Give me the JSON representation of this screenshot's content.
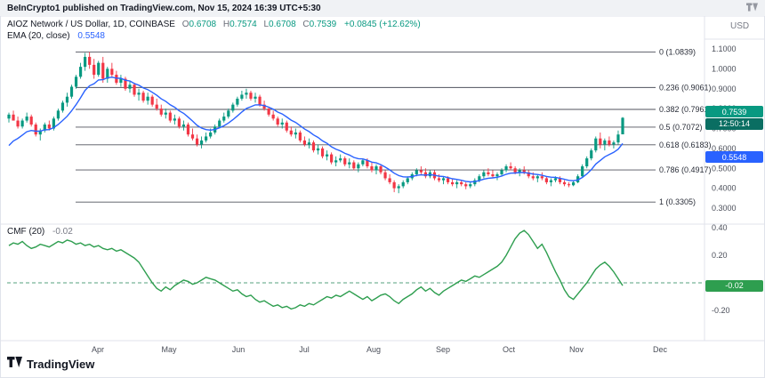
{
  "attribution": {
    "text": "BeInCrypto1 published on TradingView.com, Nov 15, 2024 16:39 UTC+5:30"
  },
  "header": {
    "symbol_title": "AIOZ Network / US Dollar, 1D, COINBASE",
    "o_label": "O",
    "o": "0.6708",
    "h_label": "H",
    "h": "0.7574",
    "l_label": "L",
    "l": "0.6708",
    "c_label": "C",
    "c": "0.7539",
    "change": "+0.0845 (+12.62%)",
    "ema_label": "EMA (20, close)",
    "ema_value": "0.5548",
    "currency": "USD"
  },
  "cmf_legend": {
    "title": "CMF (20)",
    "value": "-0.02"
  },
  "badges": {
    "last_price": {
      "value": "0.7539",
      "countdown": "12:50:14"
    },
    "ema": {
      "value": "0.5548"
    },
    "cmf": {
      "value": "-0.02"
    }
  },
  "footer": {
    "logo_text": "TradingView"
  },
  "colors": {
    "up": "#089981",
    "down": "#F23645",
    "ema": "#2962FF",
    "cmf_line": "#2E9E4F",
    "countdown_bg": "#0a6e62",
    "fib_line": "#50535e",
    "axis_text": "#4a4e59",
    "divider": "#e0e3eb",
    "zero_dash": "#55a07e"
  },
  "chart_data": [
    {
      "type": "candlestick",
      "title": "AIOZ Network / US Dollar, 1D, COINBASE",
      "ohlc_last": {
        "open": 0.6708,
        "high": 0.7574,
        "low": 0.6708,
        "close": 0.7539,
        "change": "+0.0845 (+12.62%)"
      },
      "ylim": [
        0.25,
        1.13
      ],
      "yticks": [
        1.1,
        1.0,
        0.9,
        0.8,
        0.7,
        0.6,
        0.5,
        0.4,
        0.3
      ],
      "ytick_labels": [
        "1.1000",
        "1.0000",
        "0.9000",
        "0.8000",
        "0.7000",
        "0.6000",
        "0.5000",
        "0.4000",
        "0.3000"
      ],
      "fib_levels": [
        {
          "label": "0 (1.0839)",
          "value": 1.0839
        },
        {
          "label": "0.236 (0.9061)",
          "value": 0.9061
        },
        {
          "label": "0.382 (0.7961)",
          "value": 0.7961
        },
        {
          "label": "0.5 (0.7072)",
          "value": 0.7072
        },
        {
          "label": "0.618 (0.6183)",
          "value": 0.6183
        },
        {
          "label": "0.786 (0.4917)",
          "value": 0.4917
        },
        {
          "label": "1 (0.3305)",
          "value": 0.3305
        }
      ],
      "x_axis": {
        "labels": [
          "Apr",
          "May",
          "Jun",
          "Jul",
          "Aug",
          "Sep",
          "Oct",
          "Nov",
          "Dec"
        ],
        "positions": [
          110,
          190,
          268,
          342,
          420,
          498,
          572,
          648,
          742
        ]
      },
      "ema_period": 20,
      "ema_seed": 0.58,
      "ema_last": 0.5548,
      "candles": [
        [
          0.75,
          0.78,
          0.73,
          0.77
        ],
        [
          0.77,
          0.79,
          0.74,
          0.74
        ],
        [
          0.74,
          0.76,
          0.7,
          0.71
        ],
        [
          0.71,
          0.75,
          0.7,
          0.74
        ],
        [
          0.74,
          0.78,
          0.73,
          0.76
        ],
        [
          0.76,
          0.77,
          0.71,
          0.72
        ],
        [
          0.72,
          0.73,
          0.66,
          0.67
        ],
        [
          0.67,
          0.7,
          0.64,
          0.69
        ],
        [
          0.69,
          0.73,
          0.68,
          0.72
        ],
        [
          0.72,
          0.74,
          0.69,
          0.7
        ],
        [
          0.7,
          0.76,
          0.69,
          0.75
        ],
        [
          0.75,
          0.8,
          0.74,
          0.79
        ],
        [
          0.79,
          0.84,
          0.78,
          0.83
        ],
        [
          0.83,
          0.88,
          0.81,
          0.86
        ],
        [
          0.86,
          0.92,
          0.85,
          0.91
        ],
        [
          0.91,
          0.97,
          0.9,
          0.96
        ],
        [
          0.96,
          1.03,
          0.95,
          1.01
        ],
        [
          1.01,
          1.08,
          0.99,
          1.06
        ],
        [
          1.06,
          1.084,
          1.0,
          1.02
        ],
        [
          1.02,
          1.05,
          0.95,
          0.97
        ],
        [
          0.97,
          1.04,
          0.96,
          1.03
        ],
        [
          1.03,
          1.06,
          0.93,
          0.95
        ],
        [
          0.95,
          1.01,
          0.93,
          1.0
        ],
        [
          1.0,
          1.03,
          0.96,
          0.97
        ],
        [
          0.97,
          0.99,
          0.92,
          0.93
        ],
        [
          0.93,
          0.97,
          0.91,
          0.95
        ],
        [
          0.95,
          0.96,
          0.89,
          0.9
        ],
        [
          0.9,
          0.94,
          0.88,
          0.92
        ],
        [
          0.92,
          0.93,
          0.86,
          0.87
        ],
        [
          0.87,
          0.9,
          0.84,
          0.88
        ],
        [
          0.88,
          0.89,
          0.83,
          0.84
        ],
        [
          0.84,
          0.88,
          0.82,
          0.86
        ],
        [
          0.86,
          0.87,
          0.81,
          0.82
        ],
        [
          0.82,
          0.85,
          0.79,
          0.8
        ],
        [
          0.8,
          0.82,
          0.76,
          0.77
        ],
        [
          0.77,
          0.8,
          0.75,
          0.78
        ],
        [
          0.78,
          0.79,
          0.73,
          0.74
        ],
        [
          0.74,
          0.77,
          0.72,
          0.75
        ],
        [
          0.75,
          0.76,
          0.7,
          0.71
        ],
        [
          0.71,
          0.74,
          0.69,
          0.72
        ],
        [
          0.72,
          0.73,
          0.66,
          0.67
        ],
        [
          0.67,
          0.7,
          0.64,
          0.65
        ],
        [
          0.65,
          0.67,
          0.61,
          0.62
        ],
        [
          0.62,
          0.66,
          0.6,
          0.64
        ],
        [
          0.64,
          0.68,
          0.63,
          0.66
        ],
        [
          0.66,
          0.7,
          0.65,
          0.68
        ],
        [
          0.68,
          0.72,
          0.67,
          0.71
        ],
        [
          0.71,
          0.75,
          0.7,
          0.74
        ],
        [
          0.74,
          0.78,
          0.73,
          0.76
        ],
        [
          0.76,
          0.8,
          0.75,
          0.79
        ],
        [
          0.79,
          0.83,
          0.78,
          0.82
        ],
        [
          0.82,
          0.86,
          0.81,
          0.85
        ],
        [
          0.85,
          0.89,
          0.84,
          0.87
        ],
        [
          0.87,
          0.9,
          0.85,
          0.88
        ],
        [
          0.88,
          0.89,
          0.84,
          0.85
        ],
        [
          0.85,
          0.88,
          0.83,
          0.86
        ],
        [
          0.86,
          0.87,
          0.81,
          0.82
        ],
        [
          0.82,
          0.84,
          0.79,
          0.8
        ],
        [
          0.8,
          0.81,
          0.76,
          0.77
        ],
        [
          0.77,
          0.79,
          0.74,
          0.75
        ],
        [
          0.75,
          0.76,
          0.71,
          0.72
        ],
        [
          0.72,
          0.75,
          0.7,
          0.73
        ],
        [
          0.73,
          0.74,
          0.68,
          0.69
        ],
        [
          0.69,
          0.71,
          0.66,
          0.67
        ],
        [
          0.67,
          0.7,
          0.65,
          0.68
        ],
        [
          0.68,
          0.69,
          0.63,
          0.64
        ],
        [
          0.64,
          0.66,
          0.61,
          0.62
        ],
        [
          0.62,
          0.65,
          0.6,
          0.63
        ],
        [
          0.63,
          0.64,
          0.58,
          0.59
        ],
        [
          0.59,
          0.62,
          0.57,
          0.6
        ],
        [
          0.6,
          0.61,
          0.55,
          0.56
        ],
        [
          0.56,
          0.59,
          0.54,
          0.57
        ],
        [
          0.57,
          0.58,
          0.52,
          0.53
        ],
        [
          0.53,
          0.56,
          0.51,
          0.54
        ],
        [
          0.54,
          0.57,
          0.53,
          0.55
        ],
        [
          0.55,
          0.56,
          0.51,
          0.52
        ],
        [
          0.52,
          0.55,
          0.5,
          0.53
        ],
        [
          0.53,
          0.54,
          0.49,
          0.5
        ],
        [
          0.5,
          0.53,
          0.48,
          0.52
        ],
        [
          0.52,
          0.55,
          0.51,
          0.54
        ],
        [
          0.54,
          0.55,
          0.5,
          0.51
        ],
        [
          0.51,
          0.53,
          0.48,
          0.49
        ],
        [
          0.49,
          0.52,
          0.47,
          0.51
        ],
        [
          0.51,
          0.52,
          0.47,
          0.48
        ],
        [
          0.48,
          0.49,
          0.44,
          0.45
        ],
        [
          0.45,
          0.47,
          0.42,
          0.43
        ],
        [
          0.43,
          0.44,
          0.38,
          0.4
        ],
        [
          0.4,
          0.42,
          0.375,
          0.41
        ],
        [
          0.41,
          0.44,
          0.4,
          0.43
        ],
        [
          0.43,
          0.46,
          0.42,
          0.45
        ],
        [
          0.45,
          0.48,
          0.44,
          0.47
        ],
        [
          0.47,
          0.5,
          0.46,
          0.49
        ],
        [
          0.49,
          0.51,
          0.47,
          0.48
        ],
        [
          0.48,
          0.5,
          0.45,
          0.46
        ],
        [
          0.46,
          0.49,
          0.45,
          0.48
        ],
        [
          0.48,
          0.49,
          0.44,
          0.45
        ],
        [
          0.45,
          0.47,
          0.43,
          0.44
        ],
        [
          0.44,
          0.46,
          0.42,
          0.45
        ],
        [
          0.45,
          0.46,
          0.42,
          0.43
        ],
        [
          0.43,
          0.45,
          0.41,
          0.42
        ],
        [
          0.42,
          0.44,
          0.4,
          0.43
        ],
        [
          0.43,
          0.44,
          0.41,
          0.42
        ],
        [
          0.42,
          0.43,
          0.395,
          0.41
        ],
        [
          0.41,
          0.43,
          0.4,
          0.42
        ],
        [
          0.42,
          0.45,
          0.41,
          0.44
        ],
        [
          0.44,
          0.47,
          0.43,
          0.46
        ],
        [
          0.46,
          0.49,
          0.45,
          0.48
        ],
        [
          0.48,
          0.5,
          0.46,
          0.47
        ],
        [
          0.47,
          0.49,
          0.45,
          0.46
        ],
        [
          0.46,
          0.48,
          0.44,
          0.47
        ],
        [
          0.47,
          0.5,
          0.46,
          0.49
        ],
        [
          0.49,
          0.52,
          0.48,
          0.51
        ],
        [
          0.51,
          0.53,
          0.49,
          0.5
        ],
        [
          0.5,
          0.51,
          0.47,
          0.48
        ],
        [
          0.48,
          0.5,
          0.46,
          0.49
        ],
        [
          0.49,
          0.51,
          0.47,
          0.48
        ],
        [
          0.48,
          0.49,
          0.45,
          0.46
        ],
        [
          0.46,
          0.48,
          0.44,
          0.45
        ],
        [
          0.45,
          0.47,
          0.43,
          0.46
        ],
        [
          0.46,
          0.48,
          0.44,
          0.45
        ],
        [
          0.45,
          0.46,
          0.42,
          0.43
        ],
        [
          0.43,
          0.45,
          0.41,
          0.44
        ],
        [
          0.44,
          0.46,
          0.43,
          0.45
        ],
        [
          0.45,
          0.46,
          0.42,
          0.43
        ],
        [
          0.43,
          0.44,
          0.41,
          0.42
        ],
        [
          0.42,
          0.43,
          0.405,
          0.415
        ],
        [
          0.415,
          0.44,
          0.41,
          0.43
        ],
        [
          0.43,
          0.47,
          0.425,
          0.46
        ],
        [
          0.46,
          0.52,
          0.455,
          0.51
        ],
        [
          0.51,
          0.56,
          0.5,
          0.55
        ],
        [
          0.55,
          0.6,
          0.54,
          0.59
        ],
        [
          0.59,
          0.66,
          0.58,
          0.65
        ],
        [
          0.65,
          0.68,
          0.6,
          0.62
        ],
        [
          0.62,
          0.65,
          0.59,
          0.64
        ],
        [
          0.64,
          0.66,
          0.61,
          0.62
        ],
        [
          0.62,
          0.64,
          0.6,
          0.63
        ],
        [
          0.63,
          0.69,
          0.62,
          0.67
        ],
        [
          0.6708,
          0.7574,
          0.6708,
          0.7539
        ]
      ]
    },
    {
      "type": "line",
      "title": "CMF (20)",
      "current_value": -0.02,
      "ylim": [
        -0.28,
        0.44
      ],
      "yticks": [
        0.4,
        0.2,
        -0.2
      ],
      "ytick_labels": [
        "0.40",
        "0.20",
        "-0.20"
      ],
      "zero_line": 0.0,
      "values": [
        0.27,
        0.29,
        0.28,
        0.3,
        0.27,
        0.25,
        0.26,
        0.28,
        0.27,
        0.26,
        0.28,
        0.3,
        0.29,
        0.31,
        0.3,
        0.28,
        0.29,
        0.27,
        0.28,
        0.26,
        0.27,
        0.25,
        0.24,
        0.25,
        0.23,
        0.24,
        0.22,
        0.2,
        0.18,
        0.15,
        0.1,
        0.05,
        0.0,
        -0.04,
        -0.06,
        -0.03,
        -0.05,
        -0.02,
        0.0,
        0.02,
        0.01,
        -0.01,
        0.0,
        0.02,
        0.04,
        0.03,
        0.02,
        0.0,
        -0.02,
        -0.04,
        -0.06,
        -0.05,
        -0.08,
        -0.1,
        -0.09,
        -0.12,
        -0.14,
        -0.13,
        -0.15,
        -0.17,
        -0.16,
        -0.18,
        -0.17,
        -0.19,
        -0.18,
        -0.16,
        -0.17,
        -0.15,
        -0.16,
        -0.14,
        -0.12,
        -0.1,
        -0.11,
        -0.09,
        -0.1,
        -0.08,
        -0.06,
        -0.08,
        -0.1,
        -0.12,
        -0.1,
        -0.13,
        -0.11,
        -0.09,
        -0.08,
        -0.1,
        -0.13,
        -0.15,
        -0.12,
        -0.1,
        -0.08,
        -0.05,
        -0.03,
        -0.06,
        -0.04,
        -0.07,
        -0.09,
        -0.06,
        -0.04,
        -0.02,
        0.0,
        0.02,
        0.01,
        0.03,
        0.05,
        0.04,
        0.06,
        0.08,
        0.1,
        0.12,
        0.15,
        0.2,
        0.26,
        0.32,
        0.36,
        0.38,
        0.35,
        0.3,
        0.25,
        0.28,
        0.22,
        0.15,
        0.08,
        0.02,
        -0.05,
        -0.1,
        -0.12,
        -0.08,
        -0.04,
        0.0,
        0.05,
        0.1,
        0.13,
        0.15,
        0.12,
        0.08,
        0.03,
        -0.02
      ]
    }
  ]
}
